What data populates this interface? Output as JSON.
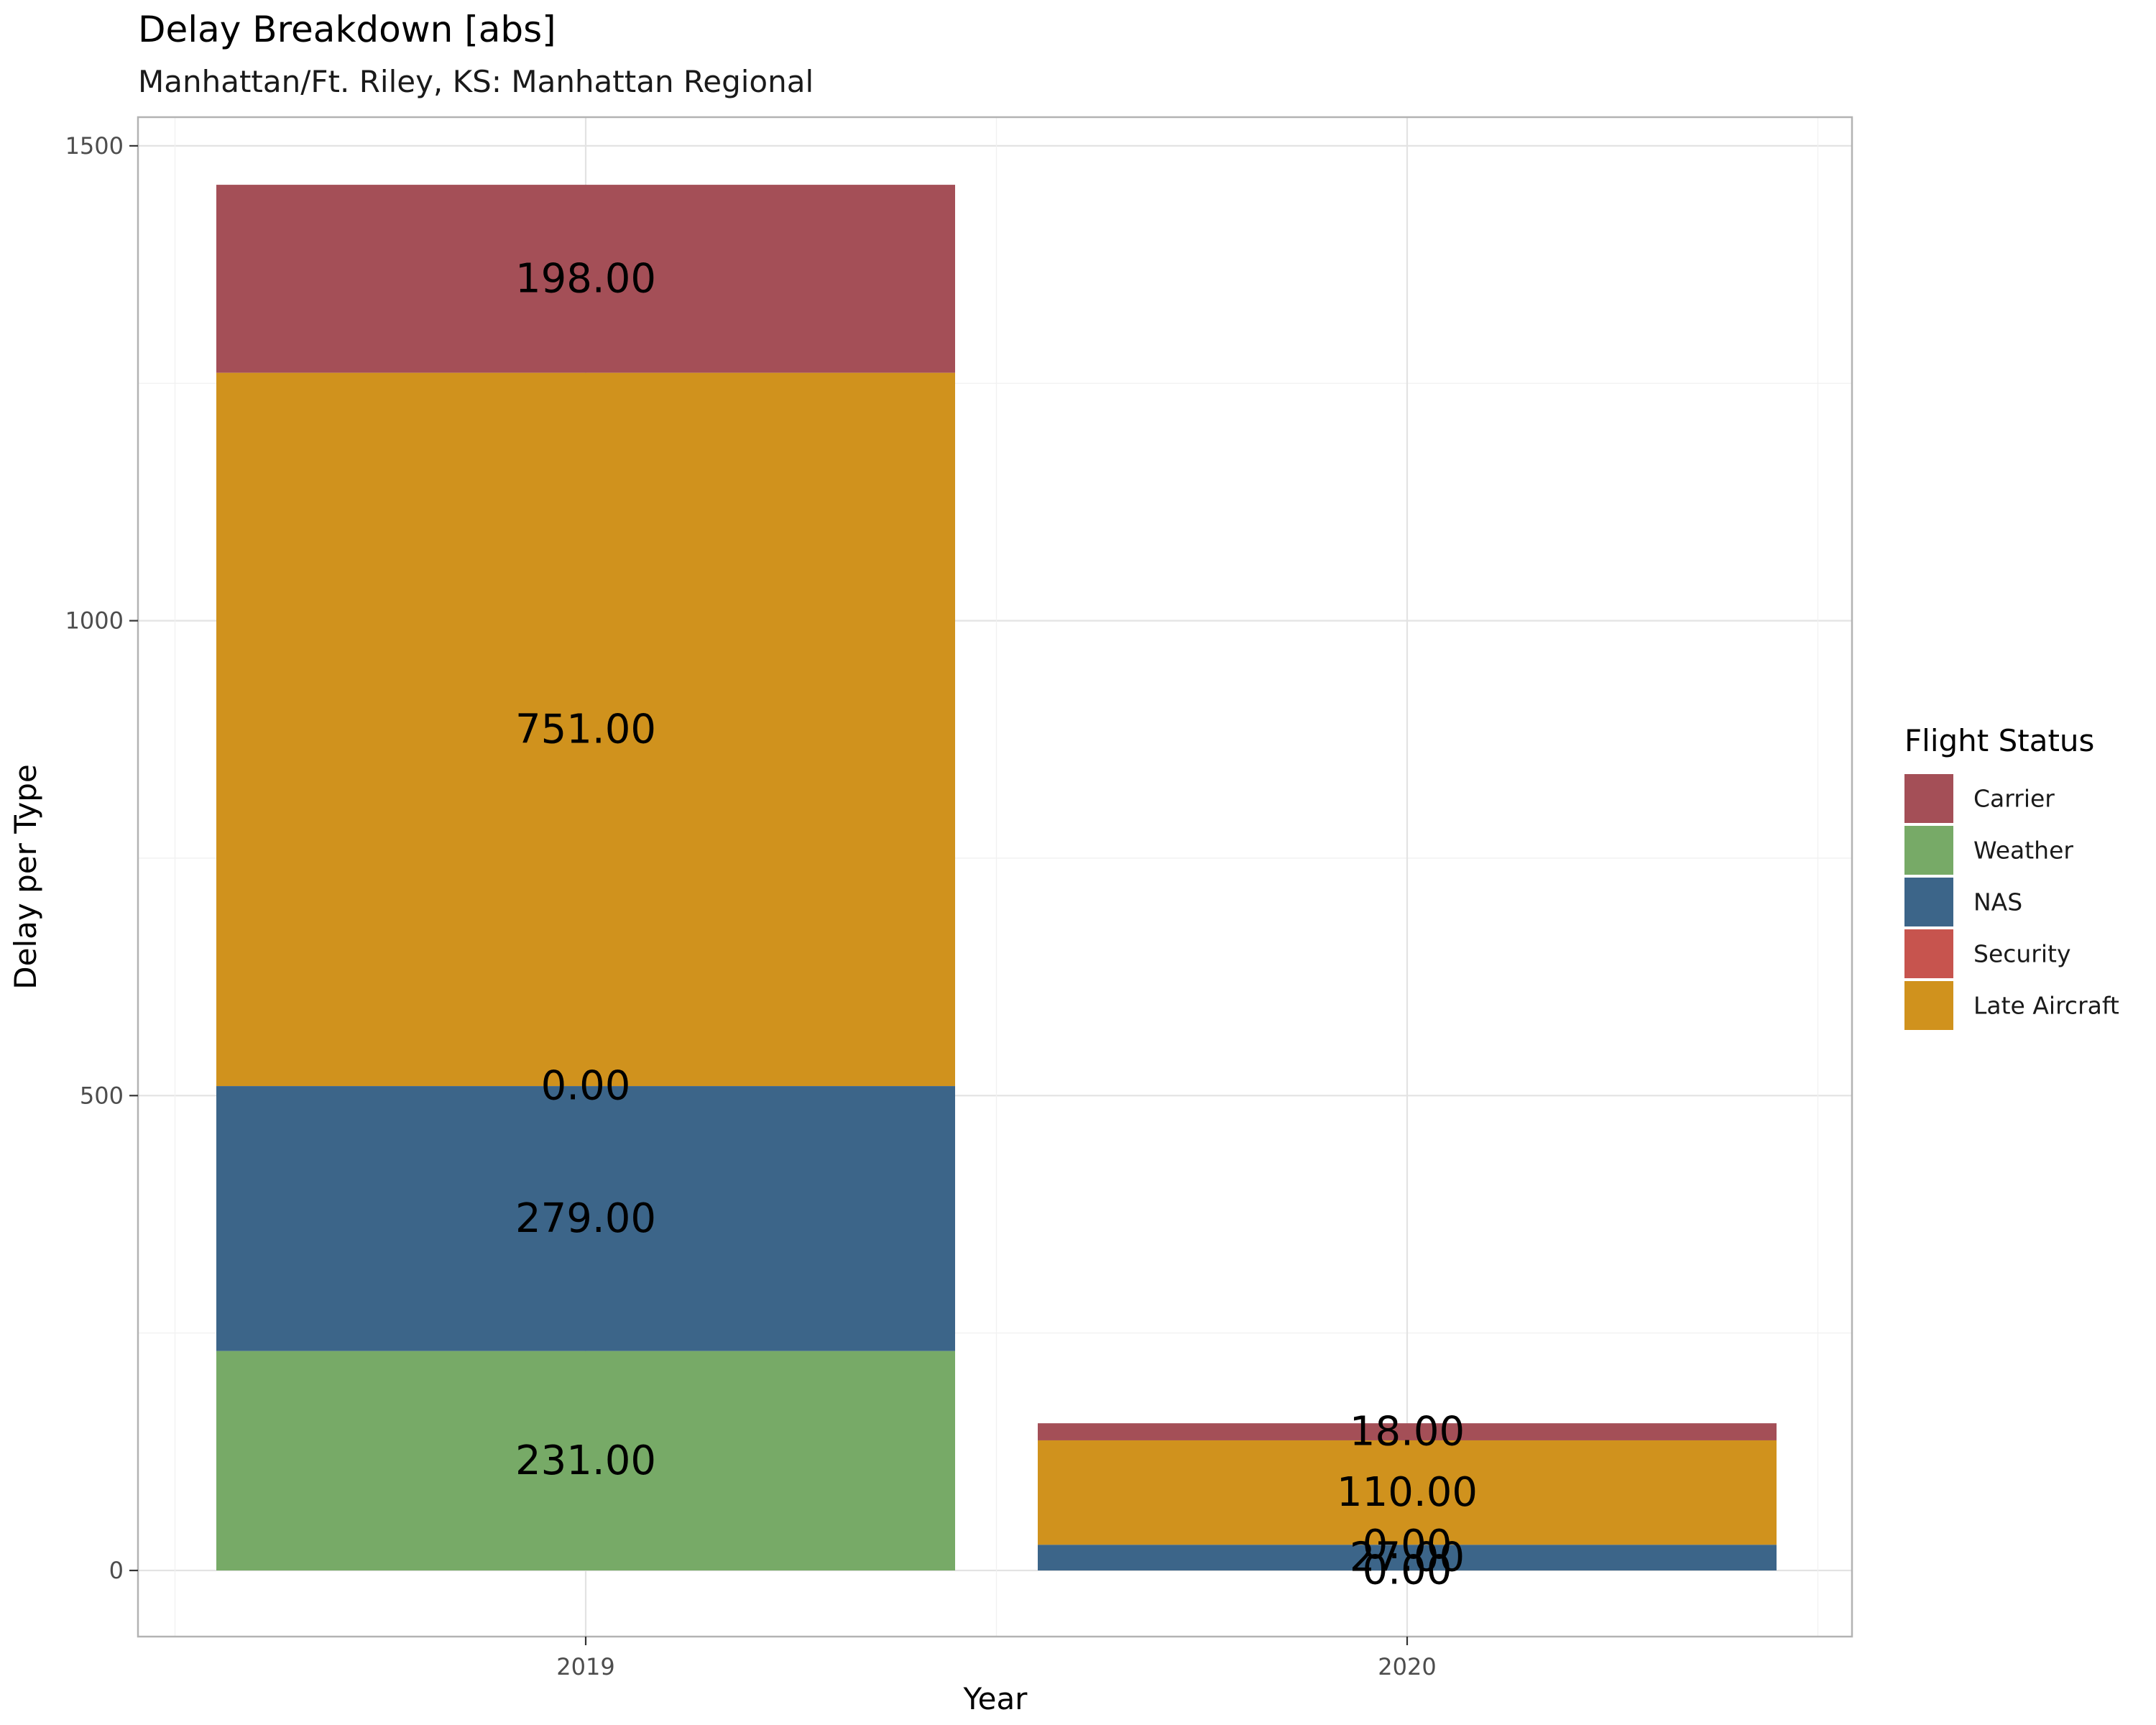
{
  "chart_data": {
    "type": "bar",
    "stacked": true,
    "title": "Delay Breakdown [abs]",
    "subtitle": "Manhattan/Ft. Riley, KS: Manhattan Regional",
    "xlabel": "Year",
    "ylabel": "Delay per Type",
    "categories": [
      "2019",
      "2020"
    ],
    "y_ticks": [
      0,
      500,
      1000,
      1500
    ],
    "ylim": [
      -70,
      1545
    ],
    "grid": true,
    "legend": {
      "title": "Flight Status",
      "placement": "right",
      "entries": [
        "Carrier",
        "Weather",
        "NAS",
        "Security",
        "Late Aircraft"
      ]
    },
    "series": [
      {
        "name": "Carrier",
        "color": "#A44F57",
        "values": [
          198,
          18
        ],
        "labels": [
          "198.00",
          "18.00"
        ]
      },
      {
        "name": "Late Aircraft",
        "color": "#D0921D",
        "values": [
          751,
          110
        ],
        "labels": [
          "751.00",
          "110.00"
        ]
      },
      {
        "name": "Security",
        "color": "#C7544E",
        "values": [
          0,
          0
        ],
        "labels": [
          "0.00",
          "0.00"
        ]
      },
      {
        "name": "NAS",
        "color": "#3C6589",
        "values": [
          279,
          27
        ],
        "labels": [
          "279.00",
          "27.00"
        ]
      },
      {
        "name": "Weather",
        "color": "#77AA67",
        "values": [
          231,
          0
        ],
        "labels": [
          "231.00",
          "0.00"
        ]
      }
    ]
  }
}
